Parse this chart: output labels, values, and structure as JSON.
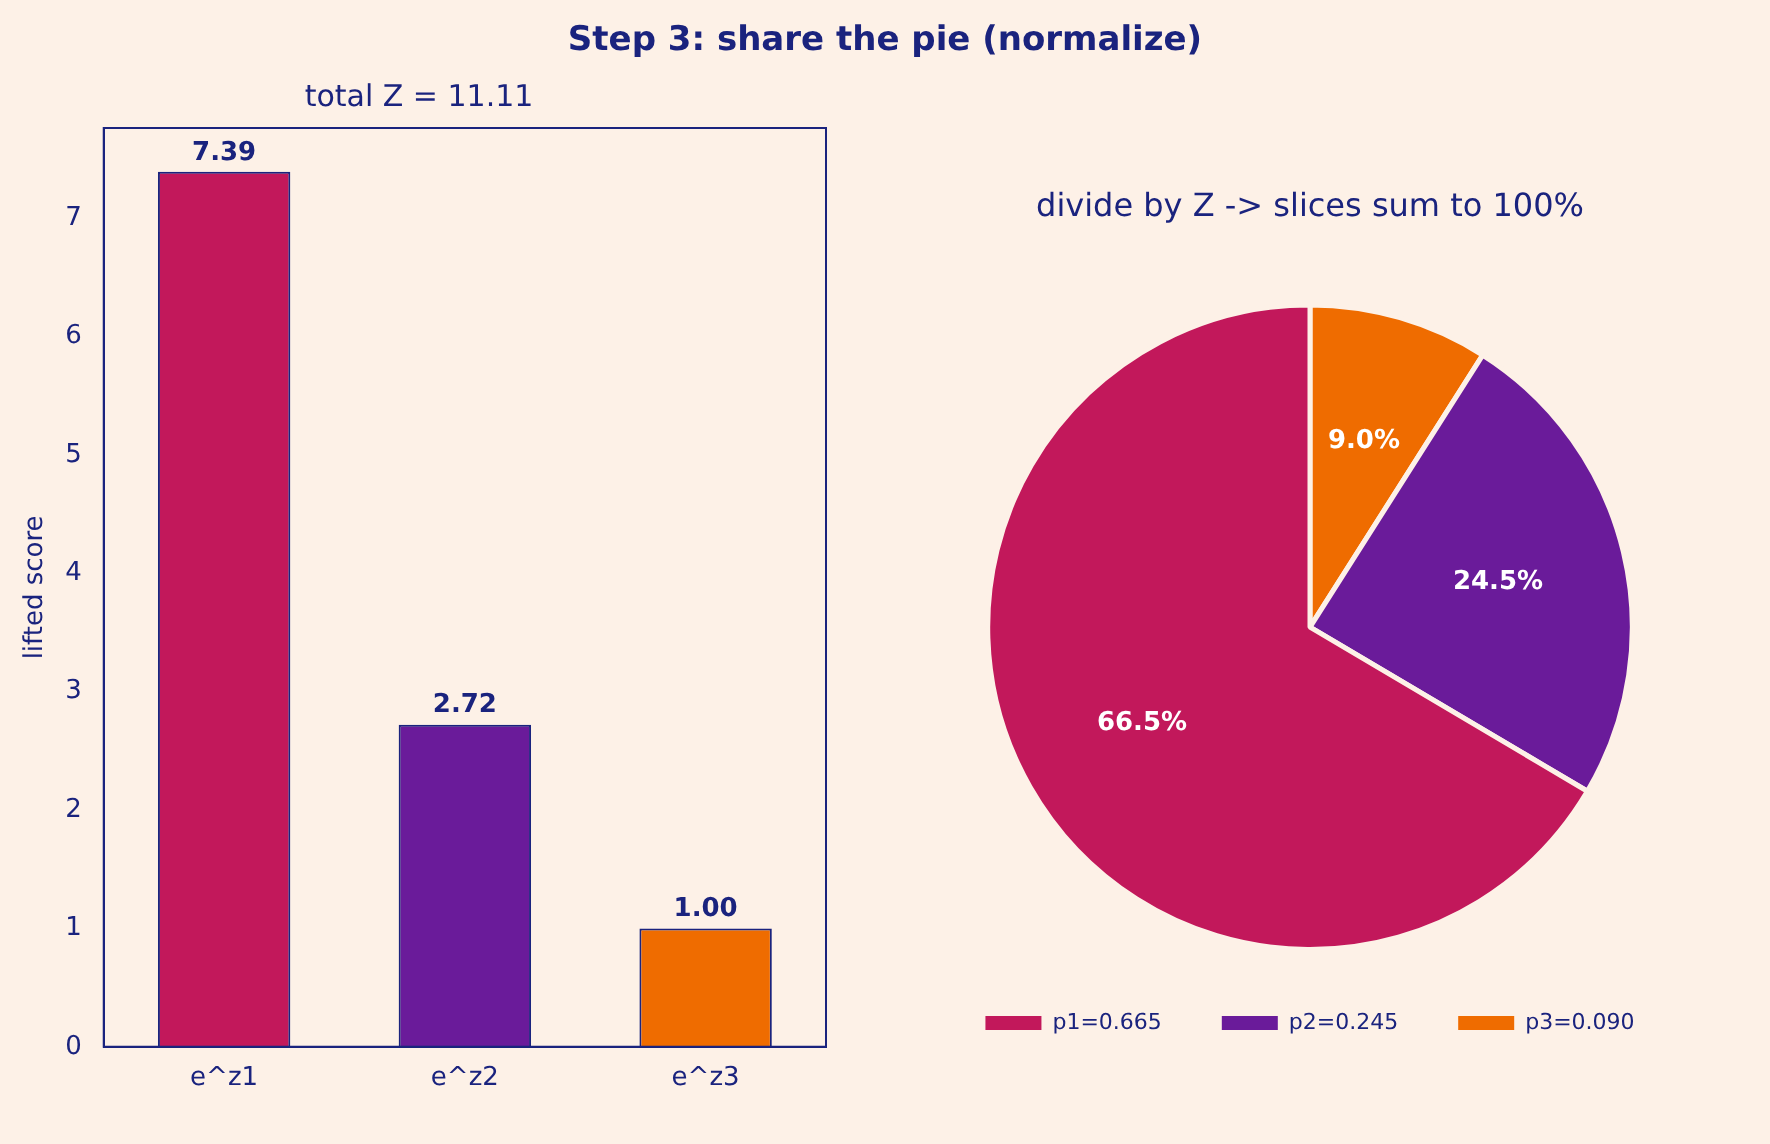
{
  "chart_data": [
    {
      "type": "bar",
      "title": "Step 3: share the pie (normalize)",
      "subtitle": "total Z = 11.11",
      "ylabel": "lifted score",
      "categories": [
        "e^z1",
        "e^z2",
        "e^z3"
      ],
      "values": [
        7.39,
        2.72,
        1.0
      ],
      "value_labels": [
        "7.39",
        "2.72",
        "1.00"
      ],
      "colors": [
        "#c2185b",
        "#6a1b9a",
        "#ef6c00"
      ],
      "ylim": [
        0,
        7.76
      ],
      "yticks": [
        0,
        1,
        2,
        3,
        4,
        5,
        6,
        7
      ],
      "grid": false,
      "legend": false
    },
    {
      "type": "pie",
      "title": "divide by Z -> slices sum to 100%",
      "categories": [
        "p1=0.665",
        "p2=0.245",
        "p3=0.090"
      ],
      "values": [
        66.5,
        24.5,
        9.0
      ],
      "value_labels": [
        "66.5%",
        "24.5%",
        "9.0%"
      ],
      "colors": [
        "#c2185b",
        "#6a1b9a",
        "#ef6c00"
      ],
      "legend": "bottom"
    }
  ]
}
